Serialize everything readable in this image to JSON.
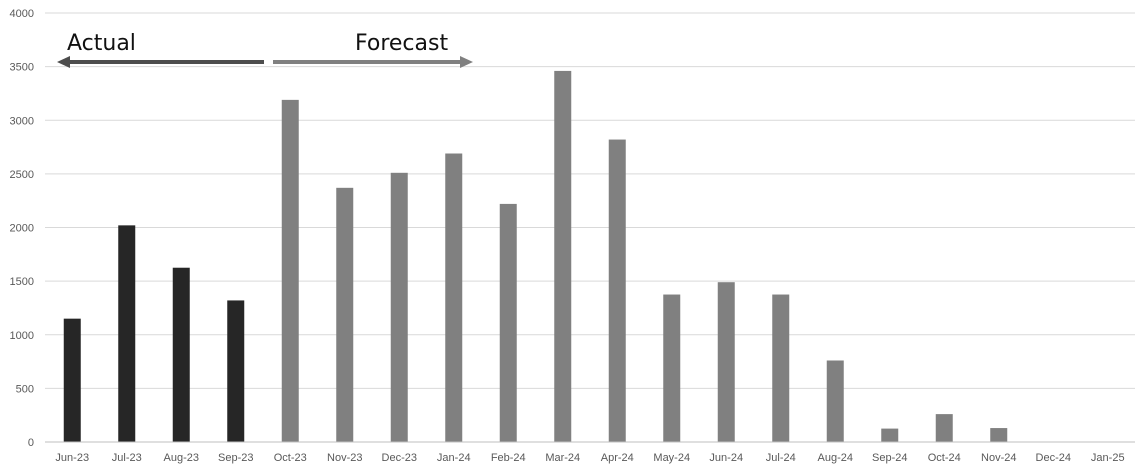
{
  "chart_data": {
    "type": "bar",
    "categories": [
      "Jun-23",
      "Jul-23",
      "Aug-23",
      "Sep-23",
      "Oct-23",
      "Nov-23",
      "Dec-23",
      "Jan-24",
      "Feb-24",
      "Mar-24",
      "Apr-24",
      "May-24",
      "Jun-24",
      "Jul-24",
      "Aug-24",
      "Sep-24",
      "Oct-24",
      "Nov-24",
      "Dec-24",
      "Jan-25"
    ],
    "series": [
      {
        "name": "Actual",
        "color": "#262626",
        "values": [
          1150,
          2020,
          1625,
          1320,
          null,
          null,
          null,
          null,
          null,
          null,
          null,
          null,
          null,
          null,
          null,
          null,
          null,
          null,
          null,
          null
        ]
      },
      {
        "name": "Forecast",
        "color": "#808080",
        "values": [
          null,
          null,
          null,
          null,
          3190,
          2370,
          2510,
          2690,
          2220,
          3460,
          2820,
          1375,
          1490,
          1375,
          760,
          125,
          260,
          130,
          0,
          0
        ]
      }
    ],
    "ylim": [
      0,
      4000
    ],
    "yticks": [
      0,
      500,
      1000,
      1500,
      2000,
      2500,
      3000,
      3500,
      4000
    ],
    "grid": true,
    "annotations": [
      {
        "text": "Actual",
        "arrow": "left",
        "color": "#4d4d4d"
      },
      {
        "text": "Forecast",
        "arrow": "right",
        "color": "#808080"
      }
    ],
    "xlabel": "",
    "ylabel": ""
  }
}
